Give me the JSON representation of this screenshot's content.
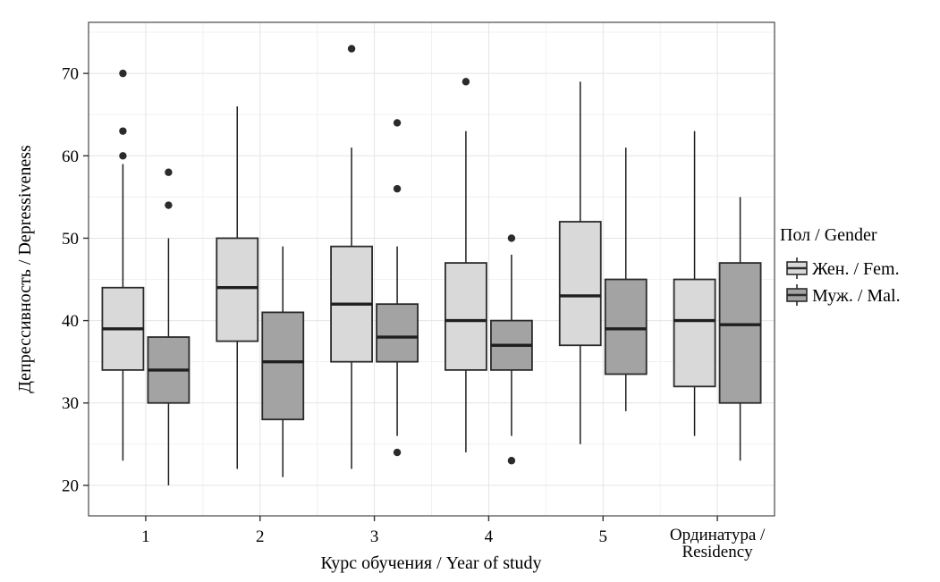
{
  "chart_data": {
    "type": "boxplot",
    "title": "",
    "xlabel": "Курс обучения / Year of study",
    "ylabel": "Депрессивность / Depressiveness",
    "categories": [
      "1",
      "2",
      "3",
      "4",
      "5",
      "Ординатура / Residency"
    ],
    "x_tick_labels": [
      [
        "1"
      ],
      [
        "2"
      ],
      [
        "3"
      ],
      [
        "4"
      ],
      [
        "5"
      ],
      [
        "Ординатура /",
        "Residency"
      ]
    ],
    "y_ticks": [
      20,
      30,
      40,
      50,
      60,
      70
    ],
    "y_minor_gridlines": [
      25,
      35,
      45,
      55,
      65,
      75
    ],
    "ylim": [
      16.3,
      76.2
    ],
    "grid": "on",
    "legend_position": "right",
    "legend": {
      "title": "Пол / Gender",
      "entries": [
        {
          "label": "Жен. / Fem.",
          "fill": "#d9d9d9"
        },
        {
          "label": "Муж. / Mal.",
          "fill": "#a3a3a3"
        }
      ]
    },
    "series": [
      {
        "name": "Жен. / Fem.",
        "fill": "#d9d9d9",
        "boxes": [
          {
            "category": "1",
            "low": 23,
            "q1": 34,
            "median": 39,
            "q3": 44,
            "high": 59,
            "outliers": [
              60,
              63,
              70
            ]
          },
          {
            "category": "2",
            "low": 22,
            "q1": 37.5,
            "median": 44,
            "q3": 50,
            "high": 66,
            "outliers": []
          },
          {
            "category": "3",
            "low": 22,
            "q1": 35,
            "median": 42,
            "q3": 49,
            "high": 61,
            "outliers": [
              73
            ]
          },
          {
            "category": "4",
            "low": 24,
            "q1": 34,
            "median": 40,
            "q3": 47,
            "high": 63,
            "outliers": [
              69
            ]
          },
          {
            "category": "5",
            "low": 25,
            "q1": 37,
            "median": 43,
            "q3": 52,
            "high": 69,
            "outliers": []
          },
          {
            "category": "Ординатура / Residency",
            "low": 26,
            "q1": 32,
            "median": 40,
            "q3": 45,
            "high": 63,
            "outliers": []
          }
        ]
      },
      {
        "name": "Муж. / Mal.",
        "fill": "#a3a3a3",
        "boxes": [
          {
            "category": "1",
            "low": 20,
            "q1": 30,
            "median": 34,
            "q3": 38,
            "high": 50,
            "outliers": [
              54,
              58
            ]
          },
          {
            "category": "2",
            "low": 21,
            "q1": 28,
            "median": 35,
            "q3": 41,
            "high": 49,
            "outliers": []
          },
          {
            "category": "3",
            "low": 26,
            "q1": 35,
            "median": 38,
            "q3": 42,
            "high": 49,
            "outliers": [
              24,
              56,
              64
            ]
          },
          {
            "category": "4",
            "low": 26,
            "q1": 34,
            "median": 37,
            "q3": 40,
            "high": 48,
            "outliers": [
              23,
              50
            ]
          },
          {
            "category": "5",
            "low": 29,
            "q1": 33.5,
            "median": 39,
            "q3": 45,
            "high": 61,
            "outliers": []
          },
          {
            "category": "Ординатура / Residency",
            "low": 23,
            "q1": 30,
            "median": 39.5,
            "q3": 47,
            "high": 55,
            "outliers": []
          }
        ]
      }
    ],
    "colors": {
      "background": "#ffffff",
      "panel_border": "#474747",
      "grid_major": "#e4e4e4",
      "grid_minor": "#f1f1f1",
      "box_stroke": "#2b2b2b",
      "median": "#1f1f1f",
      "whisker": "#1f1f1f",
      "outlier": "#2b2b2b",
      "tick": "#333333"
    }
  }
}
